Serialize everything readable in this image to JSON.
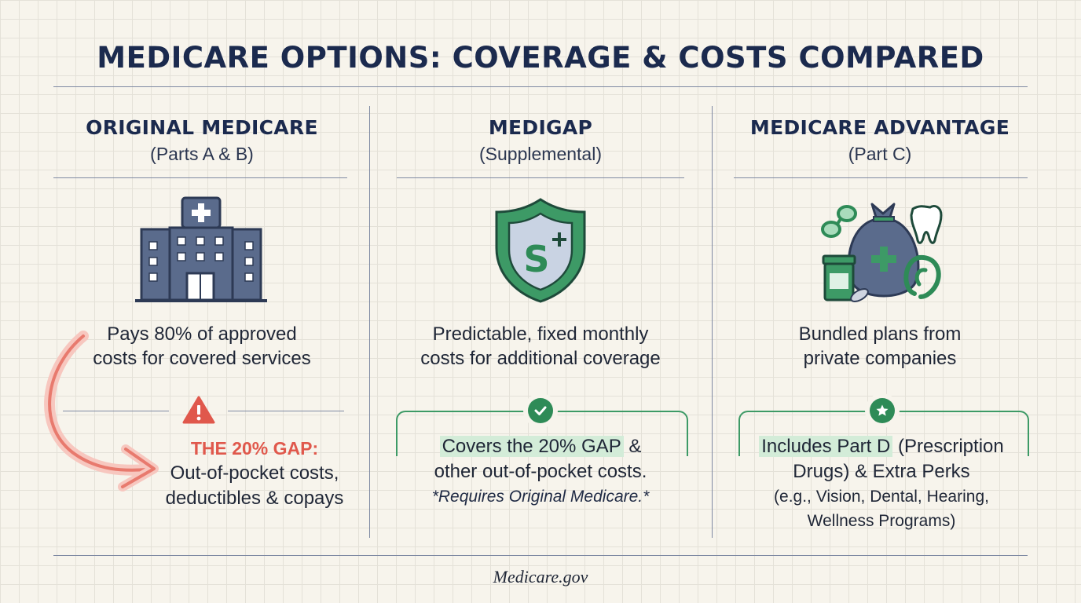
{
  "title": "MEDICARE OPTIONS: COVERAGE & COSTS COMPARED",
  "columns": [
    {
      "title": "ORIGINAL MEDICARE",
      "subtitle": "(Parts A & B)",
      "icon": "hospital-icon",
      "description": [
        "Pays 80% of approved",
        "costs for covered services"
      ],
      "callout_icon": "warning-icon",
      "gap_label": "THE 20% GAP:",
      "gap_lines": [
        "Out-of-pocket costs,",
        "deductibles & copays"
      ]
    },
    {
      "title": "MEDIGAP",
      "subtitle": "(Supplemental)",
      "icon": "shield-icon",
      "description": [
        "Predictable, fixed monthly",
        "costs for additional coverage"
      ],
      "callout_icon": "check-icon",
      "highlight": "Covers the 20% GAP",
      "highlight_rest": " &",
      "line2": "other out-of-pocket costs.",
      "note": "*Requires Original Medicare.*"
    },
    {
      "title": "MEDICARE ADVANTAGE",
      "subtitle": "(Part C)",
      "icon": "bundle-bag-icon",
      "description": [
        "Bundled plans from",
        "private companies"
      ],
      "callout_icon": "star-icon",
      "highlight": "Includes Part D",
      "highlight_rest": " (Prescription",
      "line2": "Drugs) & Extra Perks",
      "line3": "(e.g., Vision, Dental, Hearing,",
      "line4": "Wellness Programs)"
    }
  ],
  "footer": "Medicare.gov",
  "colors": {
    "navy": "#1b2a4e",
    "icon_blue": "#5a6b8c",
    "alert_red": "#e0584c",
    "green": "#2e8b57",
    "highlight": "#d3ecd8",
    "background": "#f7f4ec"
  }
}
